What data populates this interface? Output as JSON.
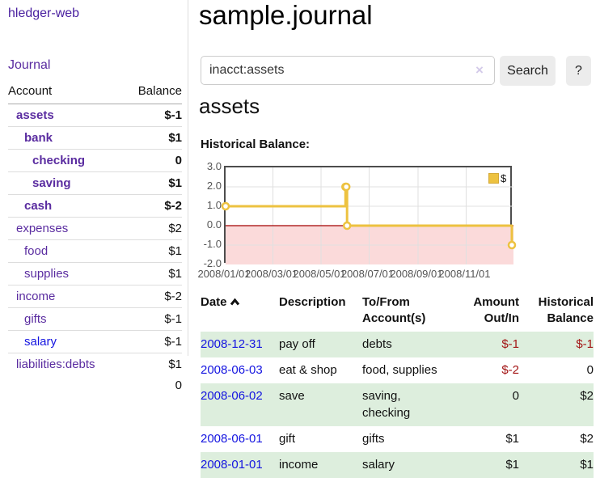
{
  "colors": {
    "accent_purple": "#5a2ca0",
    "link_blue": "#1414e0",
    "negative": "#a31515",
    "negative_dim": "#c08080",
    "row_stripe_green": "#ddeedd",
    "series_gold": "#edc240"
  },
  "sidebar": {
    "brand": "hledger-web",
    "nav_journal": "Journal",
    "accounts": {
      "col_account": "Account",
      "col_balance": "Balance",
      "rows": [
        {
          "name": "assets",
          "balance": "$-1",
          "level": 1,
          "strong": true,
          "neg": true
        },
        {
          "name": "bank",
          "balance": "$1",
          "level": 2,
          "strong": true
        },
        {
          "name": "checking",
          "balance": "0",
          "level": 3,
          "strong": true
        },
        {
          "name": "saving",
          "balance": "$1",
          "level": 3,
          "strong": true
        },
        {
          "name": "cash",
          "balance": "$-2",
          "level": 2,
          "strong": true,
          "neg": true
        },
        {
          "name": "expenses",
          "balance": "$2",
          "level": 1
        },
        {
          "name": "food",
          "balance": "$1",
          "level": 2
        },
        {
          "name": "supplies",
          "balance": "$1",
          "level": 2
        },
        {
          "name": "income",
          "balance": "$-2",
          "level": 1,
          "dim": true
        },
        {
          "name": "gifts",
          "balance": "$-1",
          "level": 2,
          "dim": true
        },
        {
          "name": "salary",
          "balance": "$-1",
          "level": 2,
          "dim": true,
          "blue": true
        },
        {
          "name": "liabilities:debts",
          "balance": "$1",
          "level": 1
        }
      ],
      "total": "0"
    }
  },
  "main": {
    "title": "sample.journal",
    "search": {
      "value": "inacct:assets",
      "clear_icon": "×",
      "search_label": "Search",
      "help_label": "?"
    },
    "heading": "assets",
    "register": {
      "headers": {
        "date": "Date",
        "description": "Description",
        "accounts": "To/From Account(s)",
        "amount": "Amount Out/In",
        "balance": "Historical Balance"
      },
      "sort": "ascending",
      "rows": [
        {
          "date": "2008-12-31",
          "description": "pay off",
          "accounts": "debts",
          "amount": "$-1",
          "amount_neg": true,
          "balance": "$-1",
          "balance_neg": true
        },
        {
          "date": "2008-06-03",
          "description": "eat & shop",
          "accounts": "food, supplies",
          "amount": "$-2",
          "amount_neg": true,
          "balance": "0"
        },
        {
          "date": "2008-06-02",
          "description": "save",
          "accounts": "saving, checking",
          "amount": "0",
          "balance": "$2"
        },
        {
          "date": "2008-06-01",
          "description": "gift",
          "accounts": "gifts",
          "amount": "$1",
          "balance": "$2"
        },
        {
          "date": "2008-01-01",
          "description": "income",
          "accounts": "salary",
          "amount": "$1",
          "balance": "$1"
        }
      ]
    }
  },
  "chart_data": {
    "type": "line",
    "title": "Historical Balance:",
    "series": [
      {
        "name": "$",
        "color": "#edc240",
        "steps": true,
        "points": [
          [
            "2008-01-01",
            1
          ],
          [
            "2008-06-01",
            2
          ],
          [
            "2008-06-02",
            2
          ],
          [
            "2008-06-03",
            0
          ],
          [
            "2008-12-31",
            -1
          ]
        ]
      }
    ],
    "x_range": [
      "2008-01-01",
      "2008-12-31"
    ],
    "x_ticks": [
      {
        "label": "2008/01/01",
        "date": "2008-01-01"
      },
      {
        "label": "2008/03/01",
        "date": "2008-03-01"
      },
      {
        "label": "2008/05/01",
        "date": "2008-05-01"
      },
      {
        "label": "2008/07/01",
        "date": "2008-07-01"
      },
      {
        "label": "2008/09/01",
        "date": "2008-09-01"
      },
      {
        "label": "2008/11/01",
        "date": "2008-11-01"
      }
    ],
    "y_ticks": [
      {
        "label": "3.0",
        "v": 3
      },
      {
        "label": "2.0",
        "v": 2
      },
      {
        "label": "1.0",
        "v": 1
      },
      {
        "label": "0.0",
        "v": 0
      },
      {
        "label": "-1.0",
        "v": -1
      },
      {
        "label": "-2.0",
        "v": -2
      }
    ],
    "ylim": [
      -2,
      3
    ],
    "grid": true,
    "legend_position": "top-right",
    "legend_label": "$",
    "negative_fill": "#fbdada",
    "zero_line_color": "#a40000",
    "grid_color": "#e0e0e0"
  }
}
